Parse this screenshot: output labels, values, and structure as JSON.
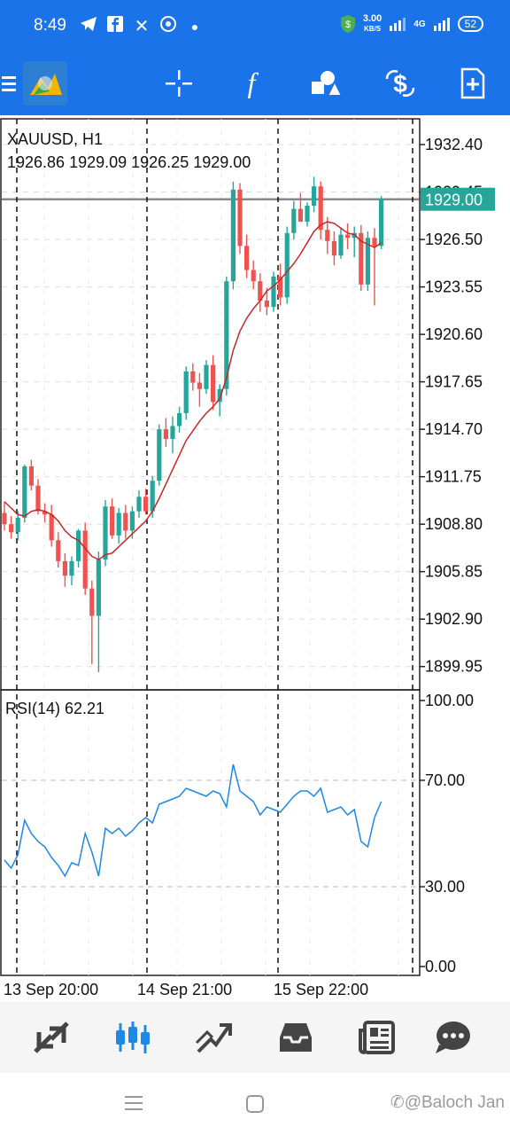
{
  "status_bar": {
    "time": "8:49",
    "speed": "3.00",
    "speed_unit": "KB/S",
    "network": "4G",
    "battery": "52"
  },
  "toolbar": {
    "menu_icon": "hamburger-icon",
    "app_icon": "metatrader-logo",
    "tools": [
      "crosshair-icon",
      "function-icon",
      "objects-icon",
      "trade-icon",
      "new-order-icon"
    ]
  },
  "chart": {
    "symbol": "XAUUSD, H1",
    "ohlc": "1926.86 1929.09 1926.25 1929.00",
    "current_price": "1929.00",
    "price_ticks": [
      "1932.40",
      "1929.45",
      "1926.50",
      "1923.55",
      "1920.60",
      "1917.65",
      "1914.70",
      "1911.75",
      "1908.80",
      "1905.85",
      "1902.90",
      "1899.95"
    ],
    "rsi_label": "RSI(14) 62.21",
    "rsi_ticks": [
      "100.00",
      "70.00",
      "30.00",
      "0.00"
    ],
    "time_labels": [
      "13 Sep 20:00",
      "14 Sep 21:00",
      "15 Sep 22:00"
    ],
    "colors": {
      "bull": "#26a69a",
      "bear": "#ef5350",
      "ma": "#c62828",
      "rsi": "#1e88e5",
      "price_line": "#888888"
    }
  },
  "chart_data": {
    "type": "candlestick",
    "title": "XAUUSD, H1",
    "ylim": [
      1898.5,
      1934.0
    ],
    "candles": [
      [
        1909.5,
        1910.2,
        1908.4,
        1908.8
      ],
      [
        1908.8,
        1909.3,
        1907.9,
        1908.3
      ],
      [
        1908.3,
        1909.6,
        1907.8,
        1909.2
      ],
      [
        1909.2,
        1912.5,
        1908.9,
        1912.4
      ],
      [
        1912.4,
        1912.8,
        1910.9,
        1911.2
      ],
      [
        1911.2,
        1911.6,
        1909.4,
        1909.6
      ],
      [
        1909.6,
        1910.1,
        1908.9,
        1909.4
      ],
      [
        1909.4,
        1910.0,
        1907.4,
        1907.8
      ],
      [
        1907.8,
        1908.3,
        1906.1,
        1906.5
      ],
      [
        1906.5,
        1907.0,
        1904.9,
        1905.6
      ],
      [
        1905.6,
        1906.8,
        1905.0,
        1906.5
      ],
      [
        1906.5,
        1908.5,
        1906.1,
        1908.4
      ],
      [
        1908.4,
        1908.9,
        1904.4,
        1904.8
      ],
      [
        1904.8,
        1905.3,
        1900.1,
        1903.1
      ],
      [
        1903.1,
        1907.1,
        1899.6,
        1906.6
      ],
      [
        1906.6,
        1910.3,
        1906.2,
        1909.9
      ],
      [
        1909.9,
        1910.4,
        1907.9,
        1908.1
      ],
      [
        1908.1,
        1909.8,
        1907.6,
        1909.5
      ],
      [
        1909.5,
        1910.0,
        1907.9,
        1908.4
      ],
      [
        1908.4,
        1909.9,
        1907.9,
        1909.6
      ],
      [
        1909.6,
        1910.9,
        1909.2,
        1910.5
      ],
      [
        1910.5,
        1911.0,
        1909.4,
        1909.6
      ],
      [
        1909.6,
        1911.8,
        1909.2,
        1911.5
      ],
      [
        1911.5,
        1915.0,
        1911.2,
        1914.7
      ],
      [
        1914.7,
        1915.4,
        1913.6,
        1914.1
      ],
      [
        1914.1,
        1915.5,
        1913.2,
        1914.9
      ],
      [
        1914.9,
        1916.1,
        1914.5,
        1915.7
      ],
      [
        1915.7,
        1918.6,
        1915.3,
        1918.3
      ],
      [
        1918.3,
        1918.8,
        1917.1,
        1917.6
      ],
      [
        1917.6,
        1918.2,
        1916.1,
        1917.2
      ],
      [
        1917.2,
        1919.0,
        1916.9,
        1918.7
      ],
      [
        1918.7,
        1919.3,
        1915.9,
        1916.4
      ],
      [
        1916.4,
        1917.5,
        1915.5,
        1917.2
      ],
      [
        1917.2,
        1924.2,
        1916.8,
        1923.9
      ],
      [
        1923.9,
        1930.1,
        1923.4,
        1929.6
      ],
      [
        1929.6,
        1930.0,
        1925.6,
        1926.1
      ],
      [
        1926.1,
        1926.8,
        1924.1,
        1924.6
      ],
      [
        1924.6,
        1925.2,
        1923.4,
        1923.9
      ],
      [
        1923.9,
        1924.4,
        1922.0,
        1922.7
      ],
      [
        1922.7,
        1923.5,
        1921.8,
        1922.3
      ],
      [
        1922.3,
        1924.5,
        1922.0,
        1924.2
      ],
      [
        1924.2,
        1925.0,
        1922.4,
        1922.9
      ],
      [
        1922.9,
        1927.3,
        1922.5,
        1926.9
      ],
      [
        1926.9,
        1928.9,
        1926.5,
        1928.4
      ],
      [
        1928.4,
        1929.4,
        1927.8,
        1927.6
      ],
      [
        1927.6,
        1928.8,
        1927.3,
        1928.6
      ],
      [
        1928.6,
        1930.4,
        1928.2,
        1929.8
      ],
      [
        1929.8,
        1930.1,
        1926.5,
        1927.1
      ],
      [
        1927.1,
        1927.9,
        1925.6,
        1926.4
      ],
      [
        1926.4,
        1927.0,
        1924.9,
        1925.5
      ],
      [
        1925.5,
        1927.2,
        1925.3,
        1926.8
      ],
      [
        1926.8,
        1927.5,
        1925.9,
        1926.6
      ],
      [
        1926.6,
        1927.3,
        1925.4,
        1926.9
      ],
      [
        1926.9,
        1927.4,
        1923.3,
        1923.7
      ],
      [
        1923.7,
        1927.0,
        1923.3,
        1926.6
      ],
      [
        1926.6,
        1927.2,
        1922.4,
        1926.1
      ],
      [
        1926.1,
        1929.2,
        1925.9,
        1929.0
      ]
    ],
    "rsi": [
      40,
      37,
      42,
      55,
      50,
      47,
      45,
      41,
      38,
      34,
      39,
      38,
      50,
      43,
      34,
      52,
      50,
      52,
      49,
      51,
      54,
      56,
      54,
      61,
      62,
      63,
      64,
      67,
      66,
      65,
      64,
      66,
      65,
      60,
      76,
      66,
      64,
      62,
      57,
      60,
      59,
      58,
      61,
      64,
      66,
      66,
      64,
      67,
      58,
      59,
      60,
      57,
      59,
      47,
      45,
      56,
      62
    ],
    "rsi_ylim": [
      0,
      100
    ],
    "ma": [
      1910.2,
      1909.8,
      1909.4,
      1909.3,
      1909.6,
      1909.7,
      1909.6,
      1909.4,
      1909.0,
      1908.4,
      1908.0,
      1907.8,
      1907.3,
      1906.8,
      1906.6,
      1906.9,
      1907.0,
      1907.4,
      1907.8,
      1908.2,
      1908.6,
      1909.0,
      1909.6,
      1910.4,
      1911.3,
      1912.2,
      1913.1,
      1914.0,
      1914.6,
      1915.2,
      1915.7,
      1916.1,
      1916.6,
      1917.9,
      1919.6,
      1920.8,
      1921.6,
      1922.2,
      1922.7,
      1923.3,
      1923.6,
      1924.0,
      1924.5,
      1925.0,
      1925.6,
      1926.3,
      1927.0,
      1927.4,
      1927.6,
      1927.5,
      1927.2,
      1926.9,
      1926.8,
      1926.4,
      1926.2,
      1926.0,
      1926.3
    ],
    "ma_label": ""
  },
  "bottom_nav": {
    "items": [
      "quotes-icon",
      "chart-icon",
      "trade-icon",
      "history-icon",
      "news-icon",
      "messages-icon"
    ]
  },
  "system_nav": {
    "watermark": "✆@Baloch Jan"
  }
}
